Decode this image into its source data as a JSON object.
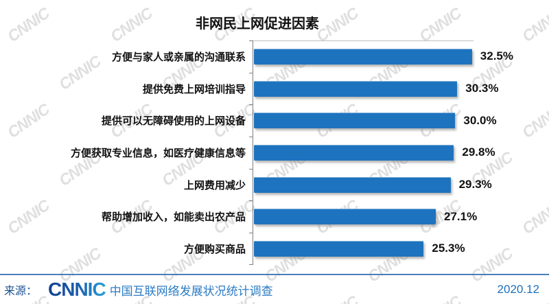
{
  "title": "非网民上网促进因素",
  "watermark_text": "CNNIC",
  "chart_data": {
    "type": "bar",
    "orientation": "horizontal",
    "title": "非网民上网促进因素",
    "categories": [
      "方便与家人或亲属的沟通联系",
      "提供免费上网培训指导",
      "提供可以无障碍使用的上网设备",
      "方便获取专业信息，如医疗健康信息等",
      "上网费用减少",
      "帮助增加收入，如能卖出农产品",
      "方便购买商品"
    ],
    "values": [
      32.5,
      30.3,
      30.0,
      29.8,
      29.3,
      27.1,
      25.3
    ],
    "value_labels": [
      "32.5%",
      "30.3%",
      "30.0%",
      "29.8%",
      "29.3%",
      "27.1%",
      "25.3%"
    ],
    "xlim": [
      0,
      33.5
    ],
    "bar_color": "#1e73be",
    "axis_color": "#7f7f7f",
    "grid": "off",
    "legend": "none"
  },
  "footer": {
    "source_label": "来源：",
    "logo_text": "CNNIC",
    "survey_name": "中国互联网络发展状况统计调查",
    "date": "2020.12",
    "divider_color": "#4a7ebb"
  }
}
